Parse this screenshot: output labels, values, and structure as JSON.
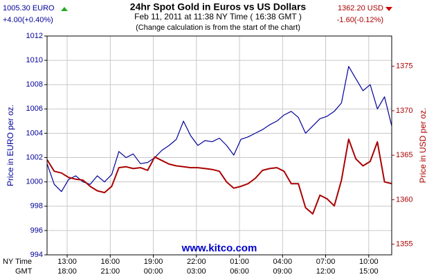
{
  "chart_data": {
    "type": "line",
    "title": "24hr Spot Gold in Euros vs US Dollars",
    "subtitle": "Feb 11, 2011 at 11:38 NY Time ( 16:38 GMT )",
    "note": "(Change calculation is from the start of the chart)",
    "left_quote": {
      "price": "1005.30 EURO",
      "change": "+4.00(+0.40%)"
    },
    "right_quote": {
      "price": "1362.20 USD",
      "change": "-1.60(-0.12%)"
    },
    "watermark": "www.kitco.com",
    "ylabel": "Price in EURO per oz.",
    "y2label": "Price in USD per oz.",
    "xlabel": "NY Time",
    "x2label": "GMT",
    "xlim": [
      11.6,
      35.6
    ],
    "xticks": [
      {
        "value": 13,
        "label": "13:00"
      },
      {
        "value": 16,
        "label": "16:00"
      },
      {
        "value": 19,
        "label": "19:00"
      },
      {
        "value": 22,
        "label": "22:00"
      },
      {
        "value": 25,
        "label": "01:00"
      },
      {
        "value": 28,
        "label": "04:00"
      },
      {
        "value": 31,
        "label": "07:00"
      },
      {
        "value": 34,
        "label": "10:00"
      }
    ],
    "x2ticks": [
      {
        "value": 13,
        "label": "18:00"
      },
      {
        "value": 16,
        "label": "21:00"
      },
      {
        "value": 19,
        "label": "00:00"
      },
      {
        "value": 22,
        "label": "03:00"
      },
      {
        "value": 25,
        "label": "06:00"
      },
      {
        "value": 28,
        "label": "09:00"
      },
      {
        "value": 31,
        "label": "12:00"
      },
      {
        "value": 34,
        "label": "15:00"
      }
    ],
    "ylim": [
      994,
      1012
    ],
    "yticks": [
      994,
      996,
      998,
      1000,
      1002,
      1004,
      1006,
      1008,
      1010,
      1012
    ],
    "y2lim": [
      1353.8,
      1378.4
    ],
    "y2ticks": [
      1355,
      1360,
      1365,
      1370,
      1375
    ],
    "grid": true,
    "x": [
      11.6,
      12.1,
      12.6,
      13.1,
      13.6,
      14.1,
      14.6,
      15.1,
      15.6,
      16.1,
      16.6,
      17.1,
      17.6,
      18.1,
      18.6,
      19.1,
      19.6,
      20.1,
      20.6,
      21.1,
      21.6,
      22.1,
      22.6,
      23.1,
      23.6,
      24.1,
      24.6,
      25.1,
      25.6,
      26.1,
      26.6,
      27.1,
      27.6,
      28.1,
      28.6,
      29.1,
      29.6,
      30.1,
      30.6,
      31.1,
      31.6,
      32.1,
      32.6,
      33.1,
      33.6,
      34.1,
      34.6,
      35.1,
      35.6
    ],
    "series": [
      {
        "name": "EURO",
        "color": "#000099",
        "axis": "y",
        "values": [
          1001.5,
          999.8,
          999.2,
          1000.2,
          1000.5,
          1000,
          999.8,
          1000.5,
          1000,
          1000.6,
          1002.5,
          1002,
          1002.3,
          1001.5,
          1001.6,
          1002,
          1002.6,
          1003,
          1003.5,
          1005,
          1003.8,
          1003,
          1003.4,
          1003.3,
          1003.6,
          1003,
          1002.2,
          1003.5,
          1003.7,
          1004,
          1004.3,
          1004.7,
          1005,
          1005.5,
          1005.8,
          1005.3,
          1004,
          1004.6,
          1005.2,
          1005.4,
          1005.8,
          1006.5,
          1009.5,
          1008.5,
          1007.5,
          1008,
          1006,
          1007,
          1004.6
        ]
      },
      {
        "name": "USD",
        "color": "#aa0000",
        "axis": "y2",
        "values": [
          1364.5,
          1363.2,
          1363.0,
          1362.5,
          1362.3,
          1362.2,
          1361.5,
          1361.0,
          1360.8,
          1361.5,
          1363.6,
          1363.7,
          1363.5,
          1363.6,
          1363.3,
          1364.8,
          1364.4,
          1364.0,
          1363.8,
          1363.7,
          1363.6,
          1363.6,
          1363.5,
          1363.4,
          1363.2,
          1362.0,
          1361.3,
          1361.5,
          1361.8,
          1362.4,
          1363.3,
          1363.5,
          1363.6,
          1363.2,
          1361.8,
          1361.8,
          1359.1,
          1358.4,
          1360.5,
          1360.1,
          1359.3,
          1362.2,
          1366.8,
          1364.6,
          1363.8,
          1364.3,
          1366.5,
          1362.0,
          1361.8
        ]
      }
    ]
  }
}
